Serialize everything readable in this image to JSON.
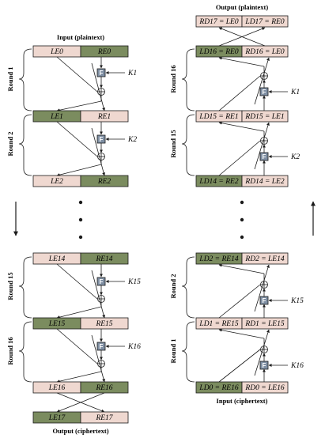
{
  "colors": {
    "light": "#efd8d0",
    "dark": "#7b8c5f",
    "fbox": "#7f8fa3",
    "line": "#1a1a1a"
  },
  "left": {
    "input_caption": "Input (plaintext)",
    "output_caption": "Output (ciphertext)",
    "rows": [
      {
        "l": "LE0",
        "r": "RE0"
      },
      {
        "l": "LE1",
        "r": "RE1"
      },
      {
        "l": "LE2",
        "r": "RE2"
      },
      {
        "l": "LE14",
        "r": "RE14"
      },
      {
        "l": "LE15",
        "r": "RE15"
      },
      {
        "l": "LE16",
        "r": "RE16"
      },
      {
        "l": "LE17",
        "r": "RE17"
      }
    ],
    "keys": [
      "K1",
      "K2",
      "K15",
      "K16"
    ],
    "rounds": [
      "Round 1",
      "Round 2",
      "Round 15",
      "Round 16"
    ]
  },
  "right": {
    "input_caption": "Input (ciphertext)",
    "output_caption": "Output (plaintext)",
    "rows": [
      {
        "l": "RD17 = LE0",
        "r": "LD17 = RE0"
      },
      {
        "l": "LD16 = RE0",
        "r": "RD16 = LE0"
      },
      {
        "l": "LD15 = RE1",
        "r": "RD15 = LE1"
      },
      {
        "l": "LD14 = RE2",
        "r": "RD14 = LE2"
      },
      {
        "l": "LD2 = RE14",
        "r": "RD2 = LE14"
      },
      {
        "l": "LD1 = RE15",
        "r": "RD1 = LE15"
      },
      {
        "l": "LD0 = RE16",
        "r": "RD0 = LE16"
      }
    ],
    "keys": [
      "K1",
      "K2",
      "K15",
      "K16"
    ],
    "rounds": [
      "Round 16",
      "Round 15",
      "Round 2",
      "Round 1"
    ]
  },
  "f_label": "F",
  "xor_symbol": "⊕"
}
